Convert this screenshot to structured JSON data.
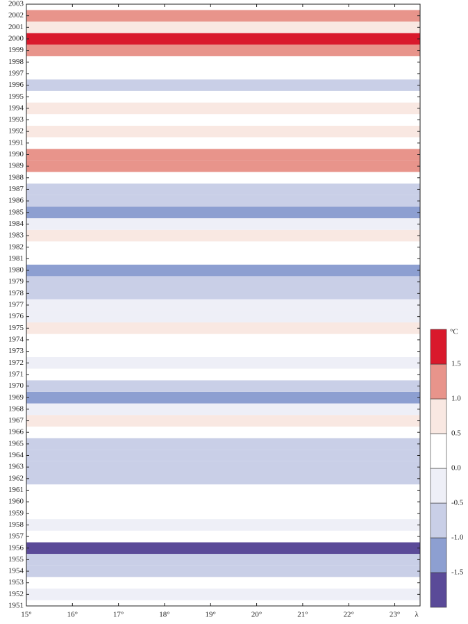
{
  "chart_data": {
    "type": "heatmap",
    "xlabel": "λ",
    "colorbar_label": "°C",
    "xlim": [
      15,
      23.55
    ],
    "xticks": [
      {
        "value": 15,
        "label": "15°"
      },
      {
        "value": 16,
        "label": "16°"
      },
      {
        "value": 17,
        "label": "17°"
      },
      {
        "value": 18,
        "label": "18°"
      },
      {
        "value": 19,
        "label": "19°"
      },
      {
        "value": 20,
        "label": "20°"
      },
      {
        "value": 21,
        "label": "21°"
      },
      {
        "value": 22,
        "label": "22°"
      },
      {
        "value": 23,
        "label": "23°"
      }
    ],
    "ylim": [
      1951,
      2003
    ],
    "yticks": [
      1951,
      1952,
      1953,
      1954,
      1955,
      1956,
      1957,
      1958,
      1959,
      1960,
      1961,
      1962,
      1963,
      1964,
      1965,
      1966,
      1967,
      1968,
      1969,
      1970,
      1971,
      1972,
      1973,
      1974,
      1975,
      1976,
      1977,
      1978,
      1979,
      1980,
      1981,
      1982,
      1983,
      1984,
      1985,
      1986,
      1987,
      1988,
      1989,
      1990,
      1991,
      1992,
      1993,
      1994,
      1995,
      1996,
      1997,
      1998,
      1999,
      2000,
      2001,
      2002,
      2003
    ],
    "y": [
      1951,
      1952,
      1953,
      1954,
      1955,
      1956,
      1957,
      1958,
      1959,
      1960,
      1961,
      1962,
      1963,
      1964,
      1965,
      1966,
      1967,
      1968,
      1969,
      1970,
      1971,
      1972,
      1973,
      1974,
      1975,
      1976,
      1977,
      1978,
      1979,
      1980,
      1981,
      1982,
      1983,
      1984,
      1985,
      1986,
      1987,
      1988,
      1989,
      1990,
      1991,
      1992,
      1993,
      1994,
      1995,
      1996,
      1997,
      1998,
      1999,
      2000,
      2001,
      2002,
      2003
    ],
    "values": [
      0.0,
      -0.4,
      0.2,
      -0.6,
      -0.9,
      -1.6,
      0.1,
      -0.1,
      0.2,
      0.0,
      0.1,
      -0.7,
      -1.0,
      -0.6,
      -0.7,
      0.2,
      0.6,
      -0.2,
      -1.1,
      -0.6,
      0.1,
      -0.2,
      0.1,
      0.3,
      0.9,
      -0.5,
      -0.3,
      -0.6,
      -0.7,
      -1.1,
      0.0,
      0.3,
      0.8,
      -0.4,
      -1.1,
      -0.6,
      -0.9,
      0.2,
      1.4,
      1.1,
      0.1,
      0.6,
      0.0,
      0.8,
      0.2,
      -0.9,
      0.1,
      0.3,
      1.1,
      1.7,
      0.6,
      1.1,
      0.3
    ],
    "levels": [
      {
        "value": -1.5,
        "label": "-1.5"
      },
      {
        "value": -1,
        "label": "-1.0"
      },
      {
        "value": -0.5,
        "label": "-0.5"
      },
      {
        "value": 0,
        "label": "0.0"
      },
      0.5,
      {
        "value": 1,
        "label": "1.0"
      },
      1.5
    ],
    "colors": [
      "#5a4a98",
      "#8d9fd1",
      "#c9cfe7",
      "#eeeff7",
      "#ffffff",
      "#f9e8e2",
      "#e8948b",
      "#d9192c"
    ]
  }
}
